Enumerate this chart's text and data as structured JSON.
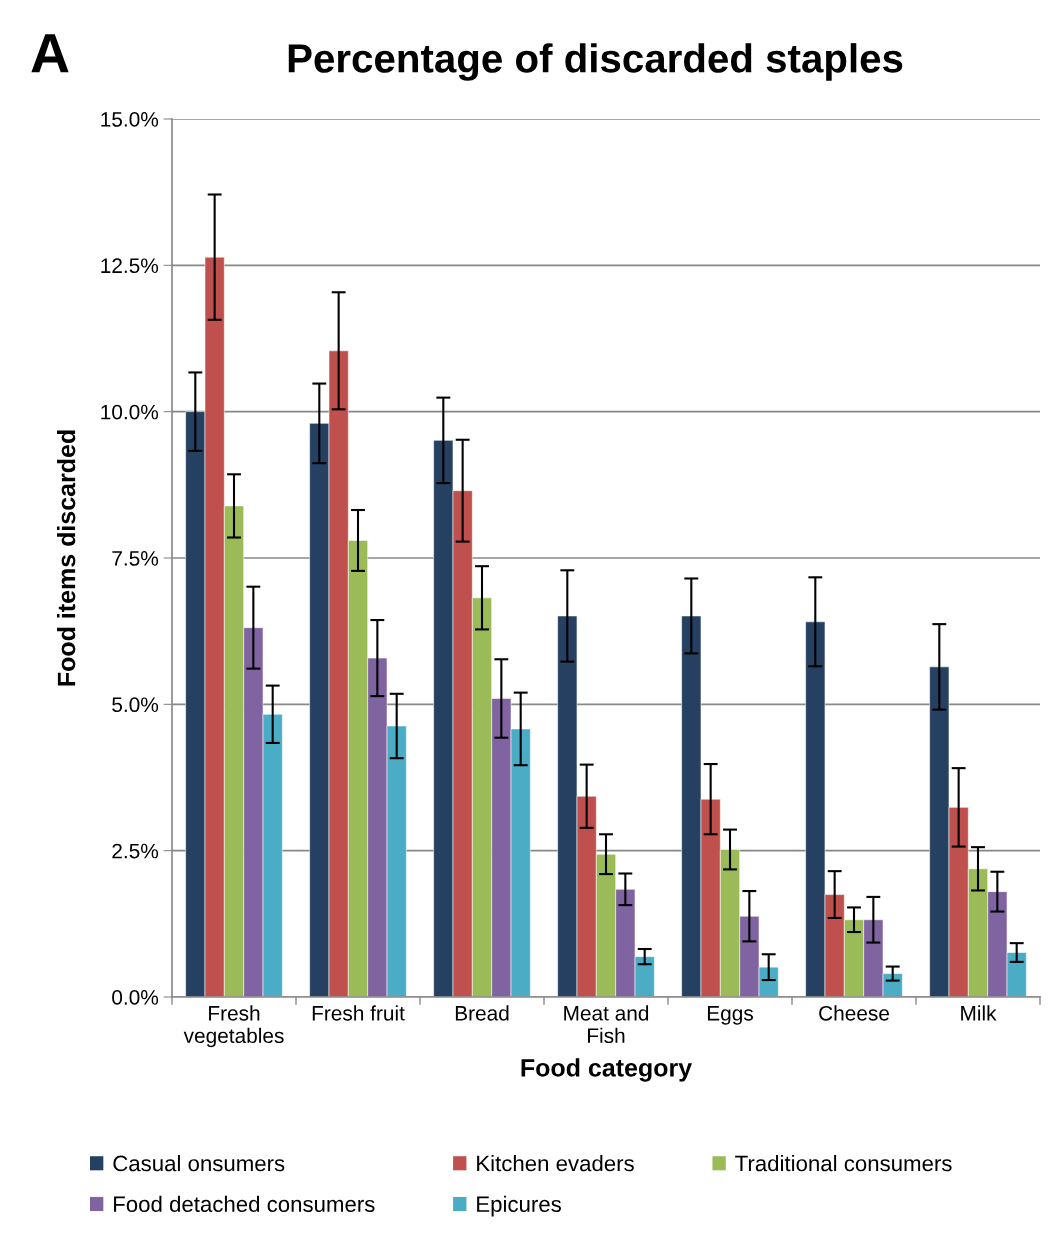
{
  "chart_data": {
    "type": "bar",
    "title": "Percentage of discarded staples",
    "xlabel": "Food category",
    "ylabel": "Food items discarded",
    "annotations": [
      "A"
    ],
    "categories": [
      "Fresh vegetables",
      "Fresh fruit",
      "Bread",
      "Meat and Fish",
      "Eggs",
      "Cheese",
      "Milk"
    ],
    "series": [
      {
        "name": "Casual onsumers",
        "color": "#254061",
        "values": [
          10.0,
          9.8,
          9.51,
          6.51,
          6.51,
          6.41,
          5.64
        ],
        "errors": [
          0.67,
          0.68,
          0.73,
          0.78,
          0.64,
          0.76,
          0.73
        ]
      },
      {
        "name": "Kitchen evaders",
        "color": "#c0504d",
        "values": [
          12.64,
          11.04,
          8.65,
          3.43,
          3.38,
          1.75,
          3.24
        ],
        "errors": [
          1.07,
          1.0,
          0.87,
          0.54,
          0.6,
          0.4,
          0.67
        ]
      },
      {
        "name": "Traditional consumers",
        "color": "#9bbb59",
        "values": [
          8.39,
          7.8,
          6.82,
          2.44,
          2.52,
          1.32,
          2.19
        ],
        "errors": [
          0.54,
          0.52,
          0.54,
          0.34,
          0.34,
          0.21,
          0.37
        ]
      },
      {
        "name": "Food detached consumers",
        "color": "#8064a2",
        "values": [
          6.31,
          5.79,
          5.1,
          1.84,
          1.38,
          1.32,
          1.8
        ],
        "errors": [
          0.7,
          0.65,
          0.67,
          0.27,
          0.43,
          0.39,
          0.34
        ]
      },
      {
        "name": "Epicures",
        "color": "#4bacc6",
        "values": [
          4.83,
          4.63,
          4.58,
          0.69,
          0.51,
          0.4,
          0.76
        ],
        "errors": [
          0.49,
          0.55,
          0.62,
          0.13,
          0.22,
          0.12,
          0.16
        ]
      }
    ],
    "ylim": [
      0,
      15
    ],
    "yticks": [
      {
        "value": 0,
        "label": "0.0%"
      },
      {
        "value": 2.5,
        "label": "2.5%"
      },
      {
        "value": 5,
        "label": "5.0%"
      },
      {
        "value": 7.5,
        "label": "7.5%"
      },
      {
        "value": 10,
        "label": "10.0%"
      },
      {
        "value": 12.5,
        "label": "12.5%"
      },
      {
        "value": 15,
        "label": "15.0%"
      }
    ],
    "grid": "y",
    "legend": "bottom"
  }
}
